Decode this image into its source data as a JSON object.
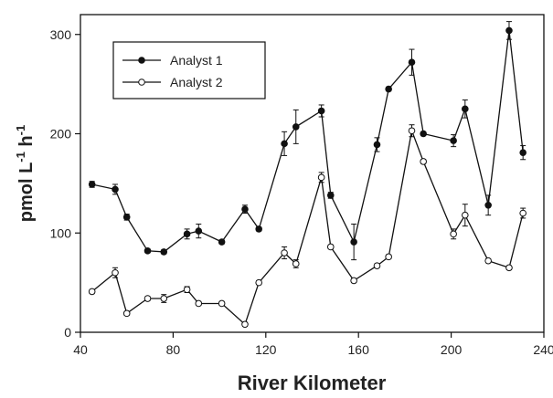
{
  "chart_data": {
    "type": "line",
    "xlabel": "River Kilometer",
    "ylabel": {
      "main": "pmol L",
      "sup1": "-1",
      "mid": " h",
      "sup2": "-1"
    },
    "xlim": [
      40,
      240
    ],
    "ylim": [
      0,
      320
    ],
    "xticks": [
      40,
      80,
      120,
      160,
      200,
      240
    ],
    "yticks": [
      0,
      100,
      200,
      300
    ],
    "grid": false,
    "legend_position": "top-left",
    "series": [
      {
        "name": "Analyst 1",
        "marker": "filled-circle",
        "color": "#111111",
        "points": [
          {
            "x": 45,
            "y": 149,
            "err": 3
          },
          {
            "x": 55,
            "y": 144,
            "err": 5
          },
          {
            "x": 60,
            "y": 116,
            "err": 3
          },
          {
            "x": 69,
            "y": 82,
            "err": 2
          },
          {
            "x": 76,
            "y": 81,
            "err": 2
          },
          {
            "x": 86,
            "y": 99,
            "err": 5
          },
          {
            "x": 91,
            "y": 102,
            "err": 7
          },
          {
            "x": 101,
            "y": 91,
            "err": 2
          },
          {
            "x": 111,
            "y": 124,
            "err": 4
          },
          {
            "x": 117,
            "y": 104,
            "err": 2
          },
          {
            "x": 128,
            "y": 190,
            "err": 12
          },
          {
            "x": 133,
            "y": 207,
            "err": 17
          },
          {
            "x": 144,
            "y": 223,
            "err": 6
          },
          {
            "x": 148,
            "y": 138,
            "err": 3
          },
          {
            "x": 158,
            "y": 91,
            "err": 18
          },
          {
            "x": 168,
            "y": 189,
            "err": 7
          },
          {
            "x": 173,
            "y": 245,
            "err": 2
          },
          {
            "x": 183,
            "y": 272,
            "err": 13
          },
          {
            "x": 188,
            "y": 200,
            "err": 2
          },
          {
            "x": 201,
            "y": 193,
            "err": 6
          },
          {
            "x": 206,
            "y": 225,
            "err": 9
          },
          {
            "x": 216,
            "y": 128,
            "err": 10
          },
          {
            "x": 225,
            "y": 304,
            "err": 9
          },
          {
            "x": 231,
            "y": 181,
            "err": 7
          }
        ]
      },
      {
        "name": "Analyst 2",
        "marker": "open-circle",
        "color": "#111111",
        "points": [
          {
            "x": 45,
            "y": 41,
            "err": 2
          },
          {
            "x": 55,
            "y": 60,
            "err": 5
          },
          {
            "x": 60,
            "y": 19,
            "err": 2
          },
          {
            "x": 69,
            "y": 34,
            "err": 2
          },
          {
            "x": 76,
            "y": 34,
            "err": 4
          },
          {
            "x": 86,
            "y": 43,
            "err": 3
          },
          {
            "x": 91,
            "y": 29,
            "err": 2
          },
          {
            "x": 101,
            "y": 29,
            "err": 2
          },
          {
            "x": 111,
            "y": 8,
            "err": 2
          },
          {
            "x": 117,
            "y": 50,
            "err": 2
          },
          {
            "x": 128,
            "y": 80,
            "err": 6
          },
          {
            "x": 133,
            "y": 69,
            "err": 4
          },
          {
            "x": 144,
            "y": 156,
            "err": 5
          },
          {
            "x": 148,
            "y": 86,
            "err": 2
          },
          {
            "x": 158,
            "y": 52,
            "err": 2
          },
          {
            "x": 168,
            "y": 67,
            "err": 2
          },
          {
            "x": 173,
            "y": 76,
            "err": 2
          },
          {
            "x": 183,
            "y": 203,
            "err": 6
          },
          {
            "x": 188,
            "y": 172,
            "err": 2
          },
          {
            "x": 201,
            "y": 99,
            "err": 5
          },
          {
            "x": 206,
            "y": 118,
            "err": 11
          },
          {
            "x": 216,
            "y": 72,
            "err": 2
          },
          {
            "x": 225,
            "y": 65,
            "err": 2
          },
          {
            "x": 231,
            "y": 120,
            "err": 5
          }
        ]
      }
    ]
  }
}
